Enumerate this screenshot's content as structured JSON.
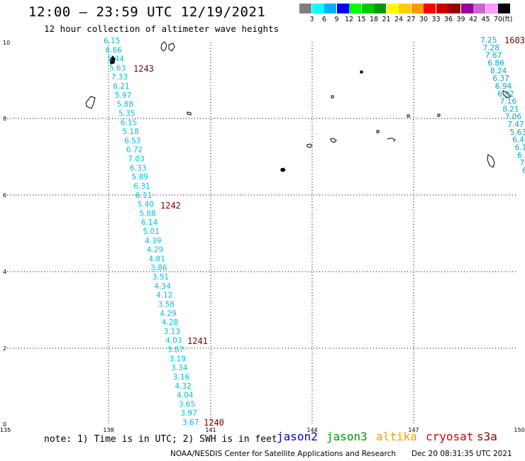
{
  "title": "12:00 – 23:59 UTC 12/19/2021",
  "subtitle": "12 hour collection of altimeter wave heights",
  "legend": {
    "colors": [
      "#7f7f7f",
      "#00ffff",
      "#00b0ff",
      "#0000ff",
      "#00ff00",
      "#00cc00",
      "#009900",
      "#ffff00",
      "#ffcc00",
      "#ff9900",
      "#ff0000",
      "#cc0000",
      "#990000",
      "#990099",
      "#cc66cc",
      "#ff99ff",
      "#000000"
    ],
    "ticks": [
      "3",
      "6",
      "9",
      "12",
      "15",
      "18",
      "21",
      "24",
      "27",
      "30",
      "33",
      "36",
      "39",
      "42",
      "45",
      "70"
    ],
    "unit": "(ft)"
  },
  "axes": {
    "lat_labels": [
      "10",
      "8",
      "6",
      "4",
      "2",
      "0"
    ],
    "lon_labels": [
      "135",
      "138",
      "141",
      "144",
      "147",
      "150"
    ]
  },
  "passes": [
    {
      "id": "1243",
      "color": "#7a0000"
    },
    {
      "id": "1242",
      "color": "#7a0000"
    },
    {
      "id": "1241",
      "color": "#7a0000"
    },
    {
      "id": "1240",
      "color": "#7a0000"
    },
    {
      "id": "1603",
      "color": "#008800"
    }
  ],
  "track_west": {
    "color": "#00c0e0",
    "values": [
      "6.15",
      "6.66",
      "5.44",
      "5.63",
      "7.33",
      "6.21",
      "5.97",
      "5.88",
      "5.35",
      "6.15",
      "5.18",
      "6.53",
      "6.72",
      "7.03",
      "6.33",
      "5.89",
      "6.31",
      "6.11",
      "5.40",
      "5.88",
      "6.14",
      "5.01",
      "4.39",
      "4.29",
      "4.81",
      "3.86",
      "3.51",
      "4.34",
      "4.12",
      "3.58",
      "4.29",
      "4.28",
      "3.13",
      "4.03",
      "3.87",
      "3.19",
      "3.34",
      "3.16",
      "4.32",
      "4.04",
      "3.65",
      "3.97",
      "3.67"
    ]
  },
  "track_east": {
    "color": "#00a8d8",
    "values": [
      "7.25",
      "7.28",
      "7.67",
      "6.86",
      "8.24",
      "6.37",
      "6.94",
      "6.92",
      "7.16",
      "8.21",
      "7.06",
      "7.47",
      "5.63",
      "6.4",
      "6.1",
      "6.",
      "7.",
      "6"
    ]
  },
  "note": "note: 1) Time is in UTC; 2) SWH is in feet",
  "satellites": [
    {
      "name": "jason2",
      "color": "#0000dd"
    },
    {
      "name": "jason3",
      "color": "#009900"
    },
    {
      "name": "altika",
      "color": "#ff9900"
    },
    {
      "name": "cryosat",
      "color": "#dd0000"
    },
    {
      "name": "s3a",
      "color": "#990000"
    }
  ],
  "footer": {
    "center": "NOAA/NESDIS Center for Satellite Applications and Research",
    "timestamp": "Dec 20 08:31:35 UTC 2021"
  }
}
